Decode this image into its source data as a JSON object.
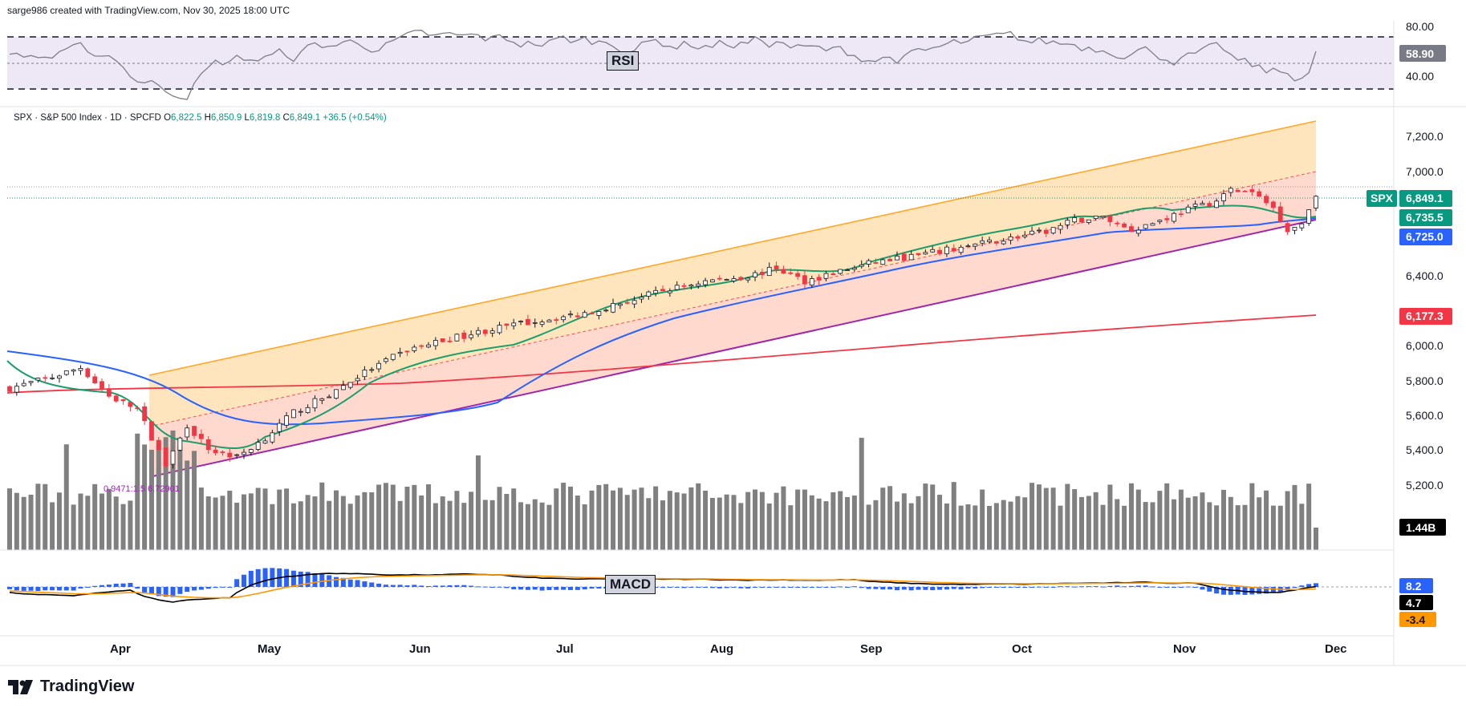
{
  "header": {
    "credit": "sarge986 created with TradingView.com, Nov 30, 2025 18:00 UTC"
  },
  "legend": {
    "symbol": "SPX · S&P 500 Index · 1D · SPCFD",
    "open_label": "O",
    "open": "6,822.5",
    "high_label": "H",
    "high": "6,850.9",
    "low_label": "L",
    "low": "6,819.8",
    "close_label": "C",
    "close": "6,849.1",
    "change": "+36.5 (+0.54%)"
  },
  "rsi": {
    "label": "RSI",
    "axis_labels": [
      "80.00",
      "40.00"
    ],
    "value_tag": "58.90",
    "upper": 70,
    "lower": 30,
    "mid": 50,
    "range": [
      22,
      88
    ]
  },
  "price_axis": {
    "labels": [
      "7,200.0",
      "7,000.0",
      "6,400.0",
      "6,000.0",
      "5,800.0",
      "5,600.0",
      "5,400.0",
      "5,200.0"
    ]
  },
  "tags": {
    "symbol": "SPX",
    "last": "6,849.1",
    "ema20": "6,735.5",
    "sma50": "6,725.0",
    "sma200": "6,177.3",
    "volume": "1.44B"
  },
  "fib_text": "0.9471:1.5 6.72901",
  "macd": {
    "label": "MACD",
    "histogram": "8.2",
    "macd": "4.7",
    "signal": "-3.4"
  },
  "months": [
    "Apr",
    "May",
    "Jun",
    "Jul",
    "Aug",
    "Sep",
    "Oct",
    "Nov",
    "Dec"
  ],
  "logo": {
    "text": "TradingView"
  },
  "colors": {
    "up": "#089981",
    "down": "#f23645",
    "ema20": "#1b9e6b",
    "sma50": "#2962ff",
    "sma200": "#f23645",
    "channel_top": "#ffa726",
    "channel_bottom": "#9c27b0",
    "volume": "#808080",
    "macd_line": "#000000",
    "signal_line": "#ff9800",
    "histogram": "#2962ff"
  },
  "chart_data": {
    "type": "candlestick",
    "ylim": [
      5000,
      7300
    ],
    "series": [
      {
        "name": "SPX",
        "x": [
          "Mar",
          "Apr 7",
          "Apr 21",
          "May 12",
          "Jun 6",
          "Jul 3",
          "Aug 1",
          "Aug 29",
          "Oct 10",
          "Oct 28",
          "Nov 20",
          "Nov 28"
        ],
        "values": [
          5650,
          5090,
          5290,
          5850,
          6010,
          6280,
          6220,
          6440,
          6560,
          6890,
          6550,
          6849.1
        ]
      }
    ],
    "indicators": {
      "ema20_last": 6735.5,
      "sma50_last": 6725.0,
      "sma200_last": 6177.3,
      "volume_last": "1.44B",
      "rsi_last": 58.9,
      "macd_last": 4.7,
      "macd_signal_last": -3.4,
      "macd_hist_last": 8.2
    }
  }
}
